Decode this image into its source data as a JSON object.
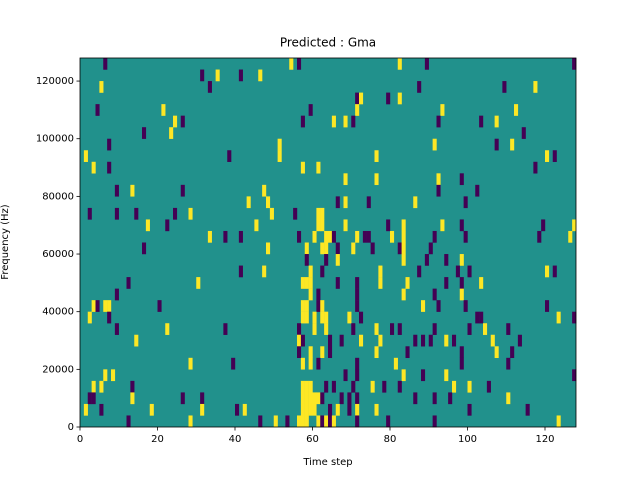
{
  "chart_data": {
    "type": "heatmap",
    "title": "Predicted : Gma",
    "x_label": "Time step",
    "y_label": "Frequency (Hz)",
    "xlim": [
      0,
      128
    ],
    "ylim": [
      0,
      128000
    ],
    "xticks": [
      0,
      20,
      40,
      60,
      80,
      100,
      120
    ],
    "yticks": [
      0,
      20000,
      40000,
      60000,
      80000,
      100000,
      120000
    ],
    "colors": {
      "low": "#440154",
      "mid": "#21918c",
      "high": "#fde725"
    },
    "cells": [
      [
        6,
        124000,
        0
      ],
      [
        54,
        124000,
        1
      ],
      [
        56,
        124000,
        0
      ],
      [
        82,
        124000,
        1
      ],
      [
        89,
        124000,
        0
      ],
      [
        127,
        124000,
        0
      ],
      [
        31,
        120000,
        0
      ],
      [
        35,
        120000,
        1
      ],
      [
        41,
        120000,
        0
      ],
      [
        46,
        120000,
        1
      ],
      [
        5,
        116000,
        1
      ],
      [
        33,
        116000,
        0
      ],
      [
        87,
        116000,
        0
      ],
      [
        109,
        116000,
        0
      ],
      [
        117,
        116000,
        1
      ],
      [
        71,
        112000,
        0
      ],
      [
        72,
        112000,
        1
      ],
      [
        79,
        112000,
        0
      ],
      [
        82,
        112000,
        1
      ],
      [
        4,
        108000,
        0
      ],
      [
        21,
        108000,
        1
      ],
      [
        59,
        108000,
        0
      ],
      [
        71,
        108000,
        1
      ],
      [
        93,
        108000,
        1
      ],
      [
        112,
        108000,
        1
      ],
      [
        24,
        104000,
        1
      ],
      [
        26,
        104000,
        0
      ],
      [
        57,
        104000,
        0
      ],
      [
        65,
        104000,
        1
      ],
      [
        68,
        104000,
        1
      ],
      [
        70,
        104000,
        0
      ],
      [
        92,
        104000,
        0
      ],
      [
        103,
        104000,
        0
      ],
      [
        107,
        104000,
        1
      ],
      [
        16,
        100000,
        0
      ],
      [
        23,
        100000,
        1
      ],
      [
        114,
        100000,
        0
      ],
      [
        7,
        96000,
        0
      ],
      [
        51,
        96000,
        1
      ],
      [
        91,
        96000,
        1
      ],
      [
        107,
        96000,
        0
      ],
      [
        111,
        96000,
        1
      ],
      [
        1,
        92000,
        1
      ],
      [
        38,
        92000,
        0
      ],
      [
        51,
        92000,
        1
      ],
      [
        76,
        92000,
        1
      ],
      [
        120,
        92000,
        1
      ],
      [
        122,
        92000,
        0
      ],
      [
        3,
        88000,
        1
      ],
      [
        7,
        88000,
        0
      ],
      [
        57,
        88000,
        1
      ],
      [
        61,
        88000,
        1
      ],
      [
        117,
        88000,
        0
      ],
      [
        68,
        84000,
        1
      ],
      [
        76,
        84000,
        1
      ],
      [
        92,
        84000,
        1
      ],
      [
        98,
        84000,
        0
      ],
      [
        9,
        80000,
        0
      ],
      [
        13,
        80000,
        1
      ],
      [
        26,
        80000,
        0
      ],
      [
        47,
        80000,
        1
      ],
      [
        92,
        80000,
        0
      ],
      [
        102,
        80000,
        0
      ],
      [
        43,
        76000,
        1
      ],
      [
        48,
        76000,
        1
      ],
      [
        66,
        76000,
        0
      ],
      [
        68,
        76000,
        1
      ],
      [
        74,
        76000,
        0
      ],
      [
        86,
        76000,
        1
      ],
      [
        99,
        76000,
        0
      ],
      [
        2,
        72000,
        0
      ],
      [
        9,
        72000,
        0
      ],
      [
        14,
        72000,
        0
      ],
      [
        24,
        72000,
        0
      ],
      [
        28,
        72000,
        1
      ],
      [
        49,
        72000,
        1
      ],
      [
        55,
        72000,
        0
      ],
      [
        61,
        72000,
        1
      ],
      [
        62,
        72000,
        1
      ],
      [
        17,
        68000,
        1
      ],
      [
        22,
        68000,
        0
      ],
      [
        45,
        68000,
        1
      ],
      [
        61,
        68000,
        1
      ],
      [
        62,
        68000,
        1
      ],
      [
        68,
        68000,
        1
      ],
      [
        79,
        68000,
        0
      ],
      [
        83,
        68000,
        1
      ],
      [
        93,
        68000,
        1
      ],
      [
        98,
        68000,
        0
      ],
      [
        119,
        68000,
        0
      ],
      [
        127,
        68000,
        1
      ],
      [
        33,
        64000,
        1
      ],
      [
        37,
        64000,
        0
      ],
      [
        41,
        64000,
        0
      ],
      [
        56,
        64000,
        0
      ],
      [
        60,
        64000,
        1
      ],
      [
        63,
        64000,
        1
      ],
      [
        64,
        64000,
        1
      ],
      [
        65,
        64000,
        0
      ],
      [
        71,
        64000,
        1
      ],
      [
        73,
        64000,
        0
      ],
      [
        74,
        64000,
        0
      ],
      [
        80,
        64000,
        1
      ],
      [
        83,
        64000,
        1
      ],
      [
        91,
        64000,
        0
      ],
      [
        99,
        64000,
        0
      ],
      [
        118,
        64000,
        0
      ],
      [
        126,
        64000,
        1
      ],
      [
        16,
        60000,
        0
      ],
      [
        48,
        60000,
        1
      ],
      [
        58,
        60000,
        1
      ],
      [
        62,
        60000,
        1
      ],
      [
        63,
        60000,
        1
      ],
      [
        66,
        60000,
        0
      ],
      [
        70,
        60000,
        1
      ],
      [
        75,
        60000,
        0
      ],
      [
        82,
        60000,
        0
      ],
      [
        83,
        60000,
        1
      ],
      [
        90,
        60000,
        0
      ],
      [
        58,
        56000,
        0
      ],
      [
        63,
        56000,
        0
      ],
      [
        66,
        56000,
        1
      ],
      [
        83,
        56000,
        1
      ],
      [
        89,
        56000,
        0
      ],
      [
        94,
        56000,
        0
      ],
      [
        98,
        56000,
        1
      ],
      [
        41,
        52000,
        0
      ],
      [
        47,
        52000,
        1
      ],
      [
        59,
        52000,
        1
      ],
      [
        62,
        52000,
        0
      ],
      [
        77,
        52000,
        1
      ],
      [
        87,
        52000,
        0
      ],
      [
        97,
        52000,
        0
      ],
      [
        100,
        52000,
        0
      ],
      [
        120,
        52000,
        1
      ],
      [
        122,
        52000,
        0
      ],
      [
        12,
        48000,
        0
      ],
      [
        30,
        48000,
        1
      ],
      [
        57,
        48000,
        1
      ],
      [
        58,
        48000,
        1
      ],
      [
        59,
        48000,
        1
      ],
      [
        66,
        48000,
        0
      ],
      [
        71,
        48000,
        0
      ],
      [
        77,
        48000,
        1
      ],
      [
        84,
        48000,
        1
      ],
      [
        94,
        48000,
        0
      ],
      [
        98,
        48000,
        0
      ],
      [
        103,
        48000,
        1
      ],
      [
        9,
        44000,
        0
      ],
      [
        59,
        44000,
        1
      ],
      [
        61,
        44000,
        0
      ],
      [
        71,
        44000,
        0
      ],
      [
        83,
        44000,
        1
      ],
      [
        91,
        44000,
        0
      ],
      [
        98,
        44000,
        1
      ],
      [
        3,
        40000,
        1
      ],
      [
        4,
        40000,
        0
      ],
      [
        6,
        40000,
        1
      ],
      [
        7,
        40000,
        1
      ],
      [
        20,
        40000,
        0
      ],
      [
        57,
        40000,
        1
      ],
      [
        58,
        40000,
        1
      ],
      [
        61,
        40000,
        0
      ],
      [
        62,
        40000,
        1
      ],
      [
        71,
        40000,
        0
      ],
      [
        88,
        40000,
        1
      ],
      [
        92,
        40000,
        0
      ],
      [
        99,
        40000,
        0
      ],
      [
        120,
        40000,
        0
      ],
      [
        2,
        36000,
        1
      ],
      [
        7,
        36000,
        0
      ],
      [
        57,
        36000,
        1
      ],
      [
        58,
        36000,
        1
      ],
      [
        60,
        36000,
        1
      ],
      [
        62,
        36000,
        1
      ],
      [
        63,
        36000,
        1
      ],
      [
        69,
        36000,
        1
      ],
      [
        72,
        36000,
        0
      ],
      [
        102,
        36000,
        0
      ],
      [
        103,
        36000,
        0
      ],
      [
        123,
        36000,
        1
      ],
      [
        127,
        36000,
        0
      ],
      [
        9,
        32000,
        0
      ],
      [
        22,
        32000,
        1
      ],
      [
        37,
        32000,
        0
      ],
      [
        56,
        32000,
        0
      ],
      [
        60,
        32000,
        1
      ],
      [
        63,
        32000,
        1
      ],
      [
        70,
        32000,
        0
      ],
      [
        76,
        32000,
        1
      ],
      [
        80,
        32000,
        0
      ],
      [
        82,
        32000,
        0
      ],
      [
        91,
        32000,
        0
      ],
      [
        100,
        32000,
        0
      ],
      [
        104,
        32000,
        1
      ],
      [
        110,
        32000,
        0
      ],
      [
        14,
        28000,
        1
      ],
      [
        56,
        28000,
        1
      ],
      [
        57,
        28000,
        0
      ],
      [
        64,
        28000,
        0
      ],
      [
        67,
        28000,
        0
      ],
      [
        72,
        28000,
        1
      ],
      [
        77,
        28000,
        1
      ],
      [
        86,
        28000,
        0
      ],
      [
        88,
        28000,
        0
      ],
      [
        90,
        28000,
        0
      ],
      [
        94,
        28000,
        1
      ],
      [
        96,
        28000,
        0
      ],
      [
        106,
        28000,
        1
      ],
      [
        113,
        28000,
        0
      ],
      [
        56,
        24000,
        0
      ],
      [
        59,
        24000,
        1
      ],
      [
        62,
        24000,
        1
      ],
      [
        64,
        24000,
        0
      ],
      [
        76,
        24000,
        1
      ],
      [
        84,
        24000,
        0
      ],
      [
        98,
        24000,
        0
      ],
      [
        107,
        24000,
        1
      ],
      [
        111,
        24000,
        0
      ],
      [
        28,
        20000,
        1
      ],
      [
        39,
        20000,
        0
      ],
      [
        57,
        20000,
        1
      ],
      [
        59,
        20000,
        1
      ],
      [
        61,
        20000,
        0
      ],
      [
        71,
        20000,
        0
      ],
      [
        81,
        20000,
        1
      ],
      [
        98,
        20000,
        0
      ],
      [
        110,
        20000,
        0
      ],
      [
        6,
        16000,
        1
      ],
      [
        8,
        16000,
        1
      ],
      [
        68,
        16000,
        0
      ],
      [
        71,
        16000,
        0
      ],
      [
        83,
        16000,
        1
      ],
      [
        88,
        16000,
        0
      ],
      [
        94,
        16000,
        1
      ],
      [
        127,
        16000,
        0
      ],
      [
        3,
        12000,
        1
      ],
      [
        5,
        12000,
        1
      ],
      [
        13,
        12000,
        0
      ],
      [
        57,
        12000,
        1
      ],
      [
        58,
        12000,
        1
      ],
      [
        59,
        12000,
        1
      ],
      [
        63,
        12000,
        0
      ],
      [
        65,
        12000,
        0
      ],
      [
        70,
        12000,
        0
      ],
      [
        75,
        12000,
        1
      ],
      [
        78,
        12000,
        0
      ],
      [
        82,
        12000,
        0
      ],
      [
        96,
        12000,
        1
      ],
      [
        100,
        12000,
        1
      ],
      [
        105,
        12000,
        0
      ],
      [
        2,
        8000,
        0
      ],
      [
        3,
        8000,
        0
      ],
      [
        13,
        8000,
        1
      ],
      [
        26,
        8000,
        0
      ],
      [
        31,
        8000,
        0
      ],
      [
        57,
        8000,
        1
      ],
      [
        58,
        8000,
        1
      ],
      [
        59,
        8000,
        1
      ],
      [
        60,
        8000,
        1
      ],
      [
        61,
        8000,
        1
      ],
      [
        62,
        8000,
        0
      ],
      [
        67,
        8000,
        0
      ],
      [
        69,
        8000,
        0
      ],
      [
        71,
        8000,
        0
      ],
      [
        86,
        8000,
        0
      ],
      [
        91,
        8000,
        0
      ],
      [
        95,
        8000,
        0
      ],
      [
        110,
        8000,
        1
      ],
      [
        1,
        4000,
        1
      ],
      [
        5,
        4000,
        0
      ],
      [
        18,
        4000,
        1
      ],
      [
        31,
        4000,
        1
      ],
      [
        40,
        4000,
        0
      ],
      [
        42,
        4000,
        1
      ],
      [
        57,
        4000,
        1
      ],
      [
        58,
        4000,
        1
      ],
      [
        59,
        4000,
        1
      ],
      [
        60,
        4000,
        1
      ],
      [
        64,
        4000,
        0
      ],
      [
        66,
        4000,
        1
      ],
      [
        69,
        4000,
        0
      ],
      [
        71,
        4000,
        1
      ],
      [
        76,
        4000,
        1
      ],
      [
        100,
        4000,
        0
      ],
      [
        115,
        4000,
        0
      ],
      [
        12,
        0,
        0
      ],
      [
        28,
        0,
        1
      ],
      [
        46,
        0,
        0
      ],
      [
        50,
        0,
        1
      ],
      [
        53,
        0,
        0
      ],
      [
        56,
        0,
        1
      ],
      [
        57,
        0,
        1
      ],
      [
        58,
        0,
        1
      ],
      [
        61,
        0,
        1
      ],
      [
        62,
        0,
        0
      ],
      [
        63,
        0,
        1
      ],
      [
        64,
        0,
        0
      ],
      [
        65,
        0,
        1
      ],
      [
        71,
        0,
        0
      ],
      [
        79,
        0,
        0
      ],
      [
        91,
        0,
        0
      ],
      [
        123,
        0,
        1
      ]
    ]
  }
}
